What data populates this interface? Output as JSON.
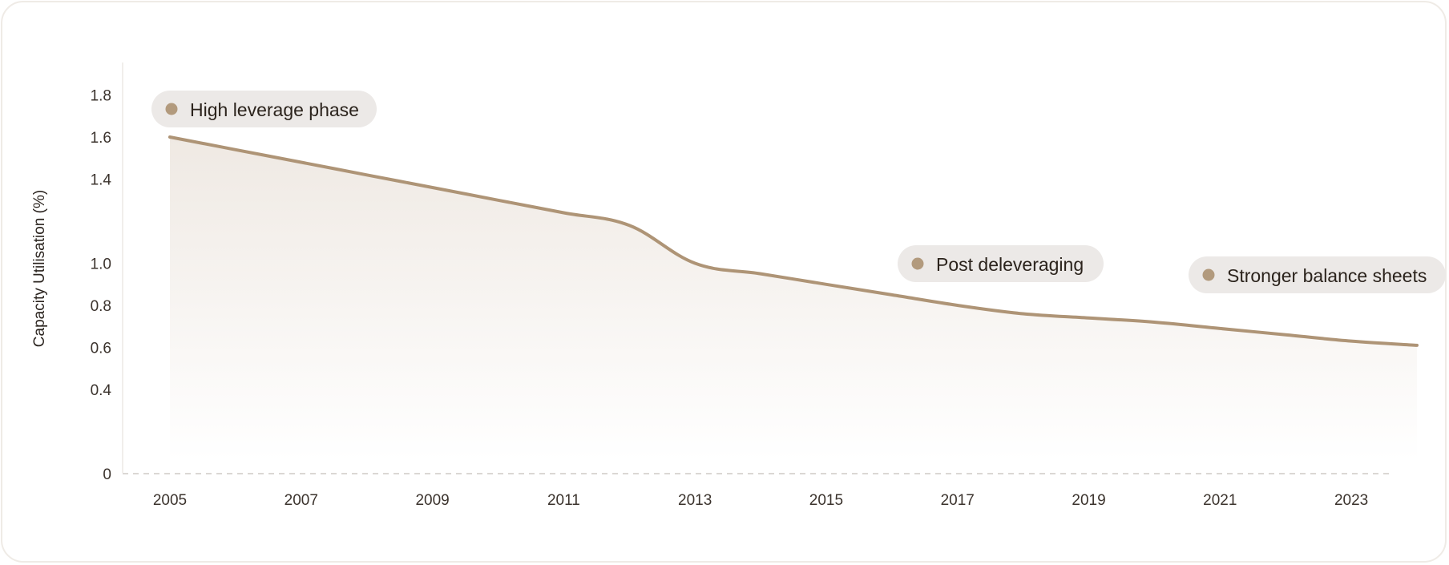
{
  "chart_data": {
    "type": "area",
    "title": "",
    "xlabel": "",
    "ylabel": "Capacity Utilisation (%)",
    "x": [
      2005,
      2006,
      2007,
      2008,
      2009,
      2010,
      2011,
      2012,
      2013,
      2014,
      2015,
      2016,
      2017,
      2018,
      2019,
      2020,
      2021,
      2022,
      2023,
      2024
    ],
    "series": [
      {
        "values": [
          1.6,
          1.54,
          1.48,
          1.42,
          1.36,
          1.3,
          1.24,
          1.18,
          1.0,
          0.95,
          0.9,
          0.85,
          0.8,
          0.76,
          0.74,
          0.72,
          0.69,
          0.66,
          0.63,
          0.61
        ]
      }
    ],
    "x_ticks": [
      "2005",
      "2007",
      "2009",
      "2011",
      "2013",
      "2015",
      "2017",
      "2019",
      "2021",
      "2023"
    ],
    "y_ticks": [
      {
        "value": 0,
        "label": "0"
      },
      {
        "value": 0.4,
        "label": "0.4"
      },
      {
        "value": 0.6,
        "label": "0.6"
      },
      {
        "value": 0.8,
        "label": "0.8"
      },
      {
        "value": 1.0,
        "label": "1.0"
      },
      {
        "value": 1.4,
        "label": "1.4"
      },
      {
        "value": 1.6,
        "label": "1.6"
      },
      {
        "value": 1.8,
        "label": "1.8"
      }
    ],
    "xlim": [
      2004.4,
      2024.1
    ],
    "ylim": [
      0,
      1.86
    ],
    "grid": false,
    "annotations": [
      {
        "text": "High leverage phase",
        "anchor_year": 2005
      },
      {
        "text": "Post deleveraging",
        "anchor_year": 2017
      },
      {
        "text": "Stronger balance sheets",
        "anchor_year": 2022
      }
    ],
    "colors": {
      "line": "#ae9476",
      "fill_top": "#efe9e3",
      "pill": "#ece9e7",
      "dot": "#b29a7d",
      "baseline": "#cfcac5"
    }
  }
}
